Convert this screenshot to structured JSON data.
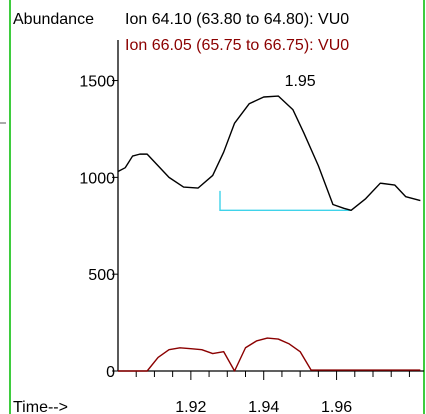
{
  "chart_data": {
    "type": "line",
    "y_axis_title": "Abundance",
    "x_axis_title": "Time-->",
    "x_ticks": [
      1.92,
      1.94,
      1.96
    ],
    "y_ticks": [
      0,
      500,
      1000,
      1500
    ],
    "xlim": [
      1.9,
      1.984
    ],
    "ylim": [
      0,
      1650
    ],
    "peak_label": {
      "text": "1.95",
      "x": 1.95,
      "y": 1440
    },
    "baseline": {
      "color": "#3fd3ea",
      "points": [
        [
          1.928,
          930
        ],
        [
          1.928,
          830
        ],
        [
          1.964,
          830
        ]
      ]
    },
    "series": [
      {
        "name": "Ion  64.10 (63.80 to 64.80): VU0",
        "color": "#000000",
        "x": [
          1.9,
          1.902,
          1.904,
          1.906,
          1.908,
          1.91,
          1.914,
          1.918,
          1.922,
          1.926,
          1.929,
          1.932,
          1.936,
          1.94,
          1.944,
          1.948,
          1.951,
          1.955,
          1.959,
          1.962,
          1.964,
          1.968,
          1.972,
          1.976,
          1.979,
          1.983
        ],
        "y": [
          1030,
          1050,
          1110,
          1120,
          1120,
          1080,
          1000,
          950,
          945,
          1010,
          1130,
          1280,
          1380,
          1415,
          1420,
          1350,
          1230,
          1060,
          860,
          840,
          830,
          890,
          970,
          960,
          900,
          880
        ]
      },
      {
        "name": "Ion  66.05 (65.75 to 66.75): VU0",
        "color": "#8b0000",
        "x": [
          1.9,
          1.902,
          1.908,
          1.911,
          1.914,
          1.917,
          1.92,
          1.923,
          1.926,
          1.929,
          1.932,
          1.935,
          1.938,
          1.941,
          1.944,
          1.947,
          1.95,
          1.953,
          1.956,
          1.962,
          1.97,
          1.983
        ],
        "y": [
          0,
          0,
          0,
          70,
          110,
          120,
          115,
          110,
          90,
          100,
          0,
          120,
          155,
          170,
          165,
          140,
          100,
          5,
          5,
          5,
          5,
          5
        ]
      }
    ]
  }
}
